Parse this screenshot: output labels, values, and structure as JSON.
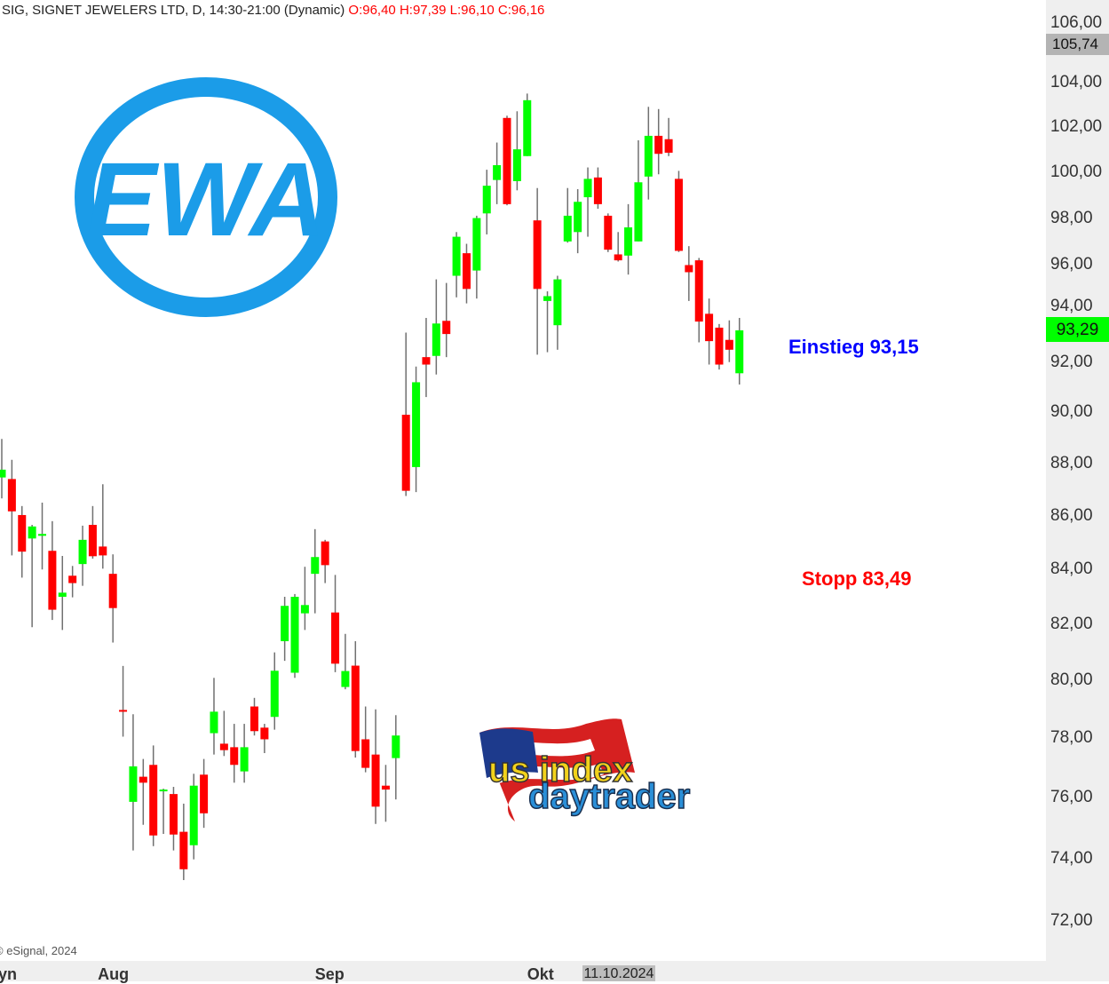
{
  "header": {
    "title": "SIG, SIGNET JEWELERS LTD, D, 14:30-21:00 (Dynamic)",
    "ohlc": "O:96,40 H:97,39 L:96,10 C:96,16"
  },
  "colors": {
    "up": "#00ff00",
    "down": "#ff0000",
    "wick": "#707070",
    "einstieg": "#0000ff",
    "stopp": "#ff0000",
    "logo_blue": "#1b9ce8"
  },
  "logos": {
    "ewa": "EWA",
    "usindex": "us index daytrader"
  },
  "annotations": {
    "einstieg": "Einstieg 93,15",
    "stopp": "Stopp 83,49"
  },
  "copyright": "© eSignal, 2024",
  "price_labels": {
    "high": "105,74",
    "last": "93,29"
  },
  "cursor_date": "11.10.2024",
  "chart_data": {
    "type": "candlestick",
    "y_scale": "log",
    "ylim": [
      71.2,
      106.5
    ],
    "y_ticks": [
      "106,00",
      "104,00",
      "102,00",
      "100,00",
      "98,00",
      "96,00",
      "94,00",
      "92,00",
      "90,00",
      "88,00",
      "86,00",
      "84,00",
      "82,00",
      "80,00",
      "78,00",
      "76,00",
      "74,00",
      "72,00"
    ],
    "y_tick_values": [
      106,
      104,
      102,
      100,
      98,
      96,
      94,
      92,
      90,
      88,
      86,
      84,
      82,
      80,
      78,
      76,
      74,
      72
    ],
    "x_labels": [
      {
        "label": "yn",
        "index": -1
      },
      {
        "label": "Aug",
        "index": 9.5
      },
      {
        "label": "Sep",
        "index": 31
      },
      {
        "label": "Okt",
        "index": 52
      }
    ],
    "candles_ohlc": [
      [
        87.46,
        88.95,
        86.66,
        87.76
      ],
      [
        87.4,
        88.14,
        84.52,
        86.17
      ],
      [
        86.03,
        86.37,
        83.7,
        84.66
      ],
      [
        85.15,
        85.66,
        81.9,
        85.6
      ],
      [
        85.25,
        86.5,
        84.0,
        85.32
      ],
      [
        84.69,
        85.8,
        82.16,
        82.53
      ],
      [
        83.0,
        84.5,
        81.8,
        83.15
      ],
      [
        83.77,
        84.13,
        82.98,
        83.5
      ],
      [
        84.2,
        85.63,
        83.4,
        85.1
      ],
      [
        85.66,
        86.37,
        84.4,
        84.49
      ],
      [
        84.85,
        87.2,
        84.03,
        84.52
      ],
      [
        83.84,
        84.56,
        81.35,
        82.59
      ],
      [
        78.98,
        80.52,
        78.06,
        78.92
      ],
      [
        75.86,
        78.83,
        74.26,
        77.05
      ],
      [
        76.7,
        77.3,
        75.1,
        76.5
      ],
      [
        77.1,
        77.76,
        74.4,
        74.75
      ],
      [
        76.24,
        76.3,
        74.8,
        76.27
      ],
      [
        76.12,
        76.36,
        74.26,
        74.78
      ],
      [
        74.87,
        75.8,
        73.3,
        73.65
      ],
      [
        74.43,
        76.8,
        73.97,
        76.4
      ],
      [
        76.77,
        77.3,
        75.0,
        75.48
      ],
      [
        78.18,
        80.1,
        77.45,
        78.92
      ],
      [
        77.82,
        78.95,
        77.4,
        77.6
      ],
      [
        77.7,
        78.5,
        76.5,
        77.1
      ],
      [
        76.88,
        78.5,
        76.5,
        77.7
      ],
      [
        79.1,
        79.4,
        78.1,
        78.25
      ],
      [
        78.37,
        78.5,
        77.5,
        77.97
      ],
      [
        78.74,
        81.0,
        78.3,
        80.35
      ],
      [
        81.4,
        83.0,
        80.7,
        82.67
      ],
      [
        80.28,
        83.1,
        80.1,
        83.0
      ],
      [
        82.4,
        84.1,
        81.8,
        82.7
      ],
      [
        83.84,
        85.5,
        82.4,
        84.46
      ],
      [
        85.04,
        85.1,
        83.5,
        84.16
      ],
      [
        82.43,
        83.8,
        80.3,
        80.6
      ],
      [
        79.78,
        81.66,
        79.7,
        80.34
      ],
      [
        80.53,
        81.4,
        77.35,
        77.57
      ],
      [
        77.97,
        79.1,
        76.85,
        77.0
      ],
      [
        77.45,
        79.0,
        75.13,
        75.7
      ],
      [
        76.4,
        77.1,
        75.2,
        76.27
      ],
      [
        77.33,
        78.8,
        75.94,
        78.1
      ],
      [
        89.9,
        93.2,
        86.75,
        86.95
      ],
      [
        87.86,
        91.82,
        86.9,
        91.19
      ],
      [
        92.2,
        93.8,
        90.6,
        91.9
      ],
      [
        92.25,
        95.4,
        91.5,
        93.57
      ],
      [
        93.68,
        95.25,
        92.2,
        93.14
      ],
      [
        95.55,
        97.4,
        94.65,
        97.2
      ],
      [
        96.5,
        96.9,
        94.4,
        95.0
      ],
      [
        95.77,
        98.1,
        94.6,
        98.0
      ],
      [
        98.2,
        100.1,
        97.3,
        99.4
      ],
      [
        99.65,
        101.3,
        98.6,
        100.3
      ],
      [
        102.4,
        102.5,
        98.55,
        98.6
      ],
      [
        99.6,
        102.7,
        99.2,
        101.0
      ],
      [
        100.7,
        103.5,
        100.7,
        103.2
      ],
      [
        97.9,
        99.3,
        92.3,
        95.0
      ],
      [
        94.5,
        94.9,
        92.4,
        94.7
      ],
      [
        93.5,
        95.55,
        92.5,
        95.4
      ],
      [
        97.0,
        99.3,
        96.95,
        98.1
      ],
      [
        97.4,
        99.25,
        96.5,
        98.7
      ],
      [
        98.9,
        100.2,
        97.2,
        99.7
      ],
      [
        99.76,
        100.2,
        98.4,
        98.6
      ],
      [
        98.1,
        98.2,
        96.55,
        96.65
      ],
      [
        96.45,
        97.4,
        96.15,
        96.2
      ],
      [
        96.4,
        98.6,
        95.6,
        97.6
      ],
      [
        97.0,
        101.4,
        97.0,
        99.55
      ],
      [
        99.8,
        102.9,
        98.8,
        101.6
      ],
      [
        101.6,
        102.8,
        99.9,
        100.8
      ],
      [
        101.45,
        102.4,
        100.7,
        100.85
      ],
      [
        99.7,
        100.05,
        96.55,
        96.6
      ],
      [
        96.0,
        96.8,
        94.5,
        95.7
      ],
      [
        96.2,
        96.3,
        92.8,
        93.65
      ],
      [
        93.97,
        94.6,
        91.9,
        92.85
      ],
      [
        93.4,
        93.55,
        91.7,
        91.9
      ],
      [
        92.9,
        93.7,
        92.0,
        92.5
      ],
      [
        91.55,
        93.8,
        91.1,
        93.29
      ]
    ]
  }
}
